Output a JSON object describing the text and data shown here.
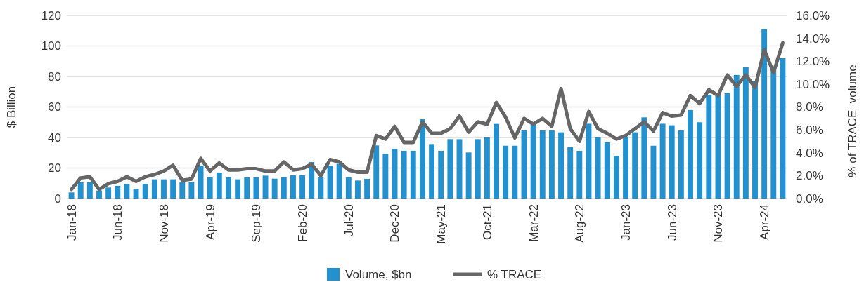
{
  "chart_data": {
    "type": "bar",
    "ylabel": "$ Billion",
    "y2label": "% of TRACE  volume",
    "categories": [
      "Jan-18",
      null,
      null,
      null,
      null,
      "Jun-18",
      null,
      null,
      null,
      null,
      "Nov-18",
      null,
      null,
      null,
      null,
      "Apr-19",
      null,
      null,
      null,
      null,
      "Sep-19",
      null,
      null,
      null,
      null,
      "Feb-20",
      null,
      null,
      null,
      null,
      "Jul-20",
      null,
      null,
      null,
      null,
      "Dec-20",
      null,
      null,
      null,
      null,
      "May-21",
      null,
      null,
      null,
      null,
      "Oct-21",
      null,
      null,
      null,
      null,
      "Mar-22",
      null,
      null,
      null,
      null,
      "Aug-22",
      null,
      null,
      null,
      null,
      "Jan-23",
      null,
      null,
      null,
      null,
      "Jun-23",
      null,
      null,
      null,
      null,
      "Nov-23",
      null,
      null,
      null,
      null,
      "Apr-24",
      null,
      null
    ],
    "series": [
      {
        "name": "Volume, $bn",
        "color": "#2390d0",
        "values": [
          4,
          10.6,
          10.6,
          5.2,
          7.2,
          8.3,
          9.5,
          6.3,
          9.5,
          12.6,
          12.6,
          12.6,
          10.6,
          10.6,
          21.6,
          13.9,
          17,
          13.9,
          12.6,
          13.9,
          13.9,
          15,
          13,
          13.9,
          15.2,
          15.2,
          23.9,
          13.9,
          21.6,
          22.8,
          13.9,
          11.8,
          12.9,
          34.8,
          29.3,
          32.6,
          31.3,
          31.3,
          52,
          35.7,
          31.3,
          38.9,
          38.9,
          30.2,
          38.9,
          40,
          48.9,
          34.6,
          34.6,
          44.6,
          49,
          44.6,
          44.6,
          43.4,
          33.6,
          31.3,
          49,
          40,
          36.8,
          28,
          40.5,
          43.4,
          53.2,
          34.6,
          49,
          48,
          44.6,
          58,
          50,
          68,
          68,
          69,
          81,
          86,
          77,
          111,
          85,
          92
        ]
      },
      {
        "name": "% TRACE",
        "type": "line",
        "axis": "y2",
        "color": "#666666",
        "values": [
          0.8,
          1.8,
          1.9,
          0.8,
          1.3,
          1.5,
          1.9,
          1.5,
          1.9,
          2.1,
          2.4,
          2.9,
          1.6,
          1.7,
          3.5,
          2.4,
          3.1,
          2.5,
          2.5,
          2.6,
          2.6,
          2.4,
          2.4,
          3.2,
          2.5,
          2.6,
          3,
          2,
          3.4,
          3.2,
          2.5,
          2.3,
          2.3,
          5.5,
          5.2,
          6.3,
          4.9,
          4.9,
          6.7,
          5.7,
          5.7,
          6.1,
          7.2,
          5.8,
          6.7,
          6.5,
          8.4,
          7.1,
          5.3,
          7,
          6.5,
          7,
          6.3,
          9.6,
          6.1,
          5,
          7.6,
          6.1,
          5.7,
          5.2,
          5.5,
          6.1,
          6.7,
          5.9,
          7.5,
          7.2,
          7.3,
          9,
          8.3,
          9.5,
          9,
          10.8,
          9.8,
          10.8,
          9.7,
          13,
          11,
          13.6
        ]
      }
    ],
    "ylim": [
      0,
      120
    ],
    "yticks": [
      0,
      20,
      40,
      60,
      80,
      100,
      120
    ],
    "y2lim": [
      0,
      16
    ],
    "y2ticks": [
      {
        "value": 0,
        "label": "0.0%"
      },
      {
        "value": 2,
        "label": "2.0%"
      },
      {
        "value": 4,
        "label": "4.0%"
      },
      {
        "value": 6,
        "label": "6.0%"
      },
      {
        "value": 8,
        "label": "8.0%"
      },
      {
        "value": 10,
        "label": "10.0%"
      },
      {
        "value": 12,
        "label": "12.0%"
      },
      {
        "value": 14,
        "label": "14.0%"
      },
      {
        "value": 16,
        "label": "16.0%"
      }
    ],
    "grid": "y",
    "legend": "bottom"
  }
}
